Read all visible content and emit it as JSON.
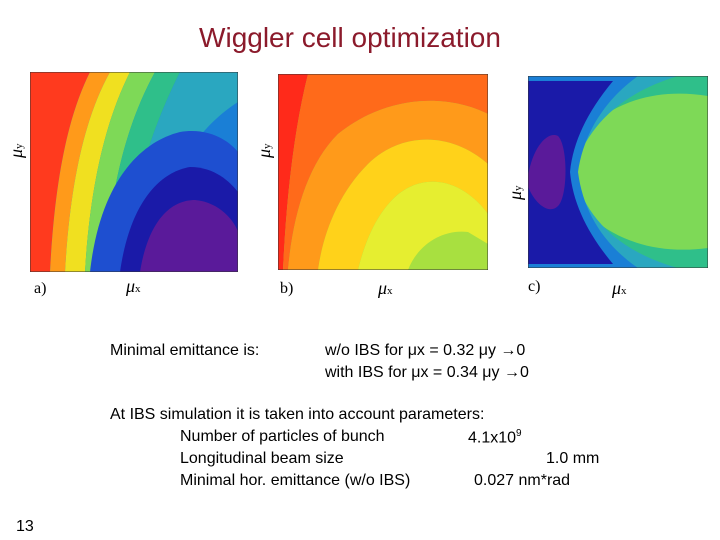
{
  "slide": {
    "title": "Wiggler cell optimization",
    "page_number": "13"
  },
  "panels": [
    {
      "label": "a)",
      "x_axis": "μ",
      "x_sub": "x",
      "y_axis": "μ",
      "y_sub": "y"
    },
    {
      "label": "b)",
      "x_axis": "μ",
      "x_sub": "x",
      "y_axis": "μ",
      "y_sub": "y"
    },
    {
      "label": "c)",
      "x_axis": "μ",
      "x_sub": "x",
      "y_axis": "μ",
      "y_sub": "y"
    }
  ],
  "result": {
    "heading": "Minimal emittance is:",
    "line1": "w/o IBS for μx = 0.32 μy →0",
    "line2": "with IBS for μx = 0.34 μy →0"
  },
  "params": {
    "intro": "At IBS simulation it is taken into account parameters:",
    "rows": [
      {
        "name": "Number of particles of bunch",
        "value": "4.1x10",
        "exp": "9"
      },
      {
        "name": "Longitudinal beam size",
        "value": "1.0  mm",
        "exp": ""
      },
      {
        "name": "Minimal hor. emittance (w/o IBS)",
        "value": "0.027 nm*rad",
        "exp": ""
      }
    ]
  }
}
